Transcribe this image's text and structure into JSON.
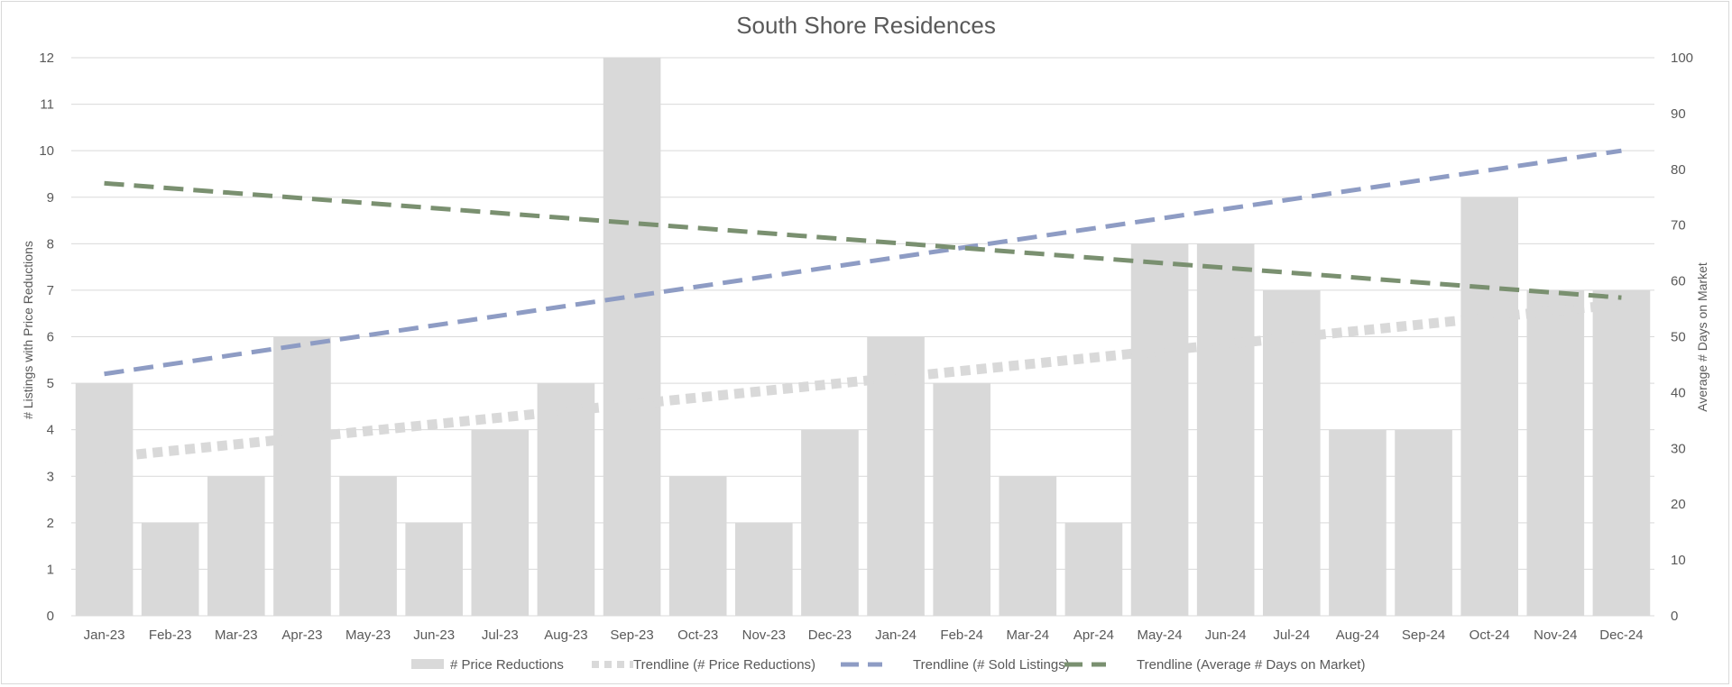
{
  "chart_data": {
    "type": "bar",
    "title": "South Shore Residences",
    "xlabel": "",
    "ylabel": "# Listings with Price Reductions",
    "y2label": "Average # Days on Market",
    "ylim": [
      0,
      12
    ],
    "y2lim": [
      0,
      100
    ],
    "yticks": [
      "0",
      "1",
      "2",
      "3",
      "4",
      "5",
      "6",
      "7",
      "8",
      "9",
      "10",
      "11",
      "12"
    ],
    "y2ticks": [
      "0",
      "10",
      "20",
      "30",
      "40",
      "50",
      "60",
      "70",
      "80",
      "90",
      "100"
    ],
    "grid": true,
    "legend_position": "bottom",
    "categories": [
      "Jan-23",
      "Feb-23",
      "Mar-23",
      "Apr-23",
      "May-23",
      "Jun-23",
      "Jul-23",
      "Aug-23",
      "Sep-23",
      "Oct-23",
      "Nov-23",
      "Dec-23",
      "Jan-24",
      "Feb-24",
      "Mar-24",
      "Apr-24",
      "May-24",
      "Jun-24",
      "Jul-24",
      "Aug-24",
      "Sep-24",
      "Oct-24",
      "Nov-24",
      "Dec-24"
    ],
    "series": [
      {
        "name": "# Price Reductions",
        "kind": "bar",
        "axis": "left",
        "color": "#d9d9d9",
        "values": [
          5,
          2,
          3,
          6,
          3,
          2,
          4,
          5,
          12,
          3,
          2,
          4,
          6,
          5,
          3,
          2,
          8,
          8,
          7,
          4,
          4,
          9,
          7,
          7
        ]
      },
      {
        "name": "Trendline (# Price Reductions)",
        "kind": "trendline",
        "axis": "left",
        "color": "#d9d9d9",
        "dash": "dotted",
        "start": 3.4,
        "end": 6.7
      },
      {
        "name": "Trendline (# Sold Listings)",
        "kind": "trendline",
        "axis": "left",
        "color": "#8e9cc4",
        "dash": "dashed",
        "start": 5.2,
        "end": 10.0
      },
      {
        "name": "Trendline (Average # Days on Market)",
        "kind": "trendline",
        "axis": "right",
        "color": "#7a9070",
        "dash": "dashed",
        "start": 77.5,
        "end": 57
      }
    ]
  }
}
